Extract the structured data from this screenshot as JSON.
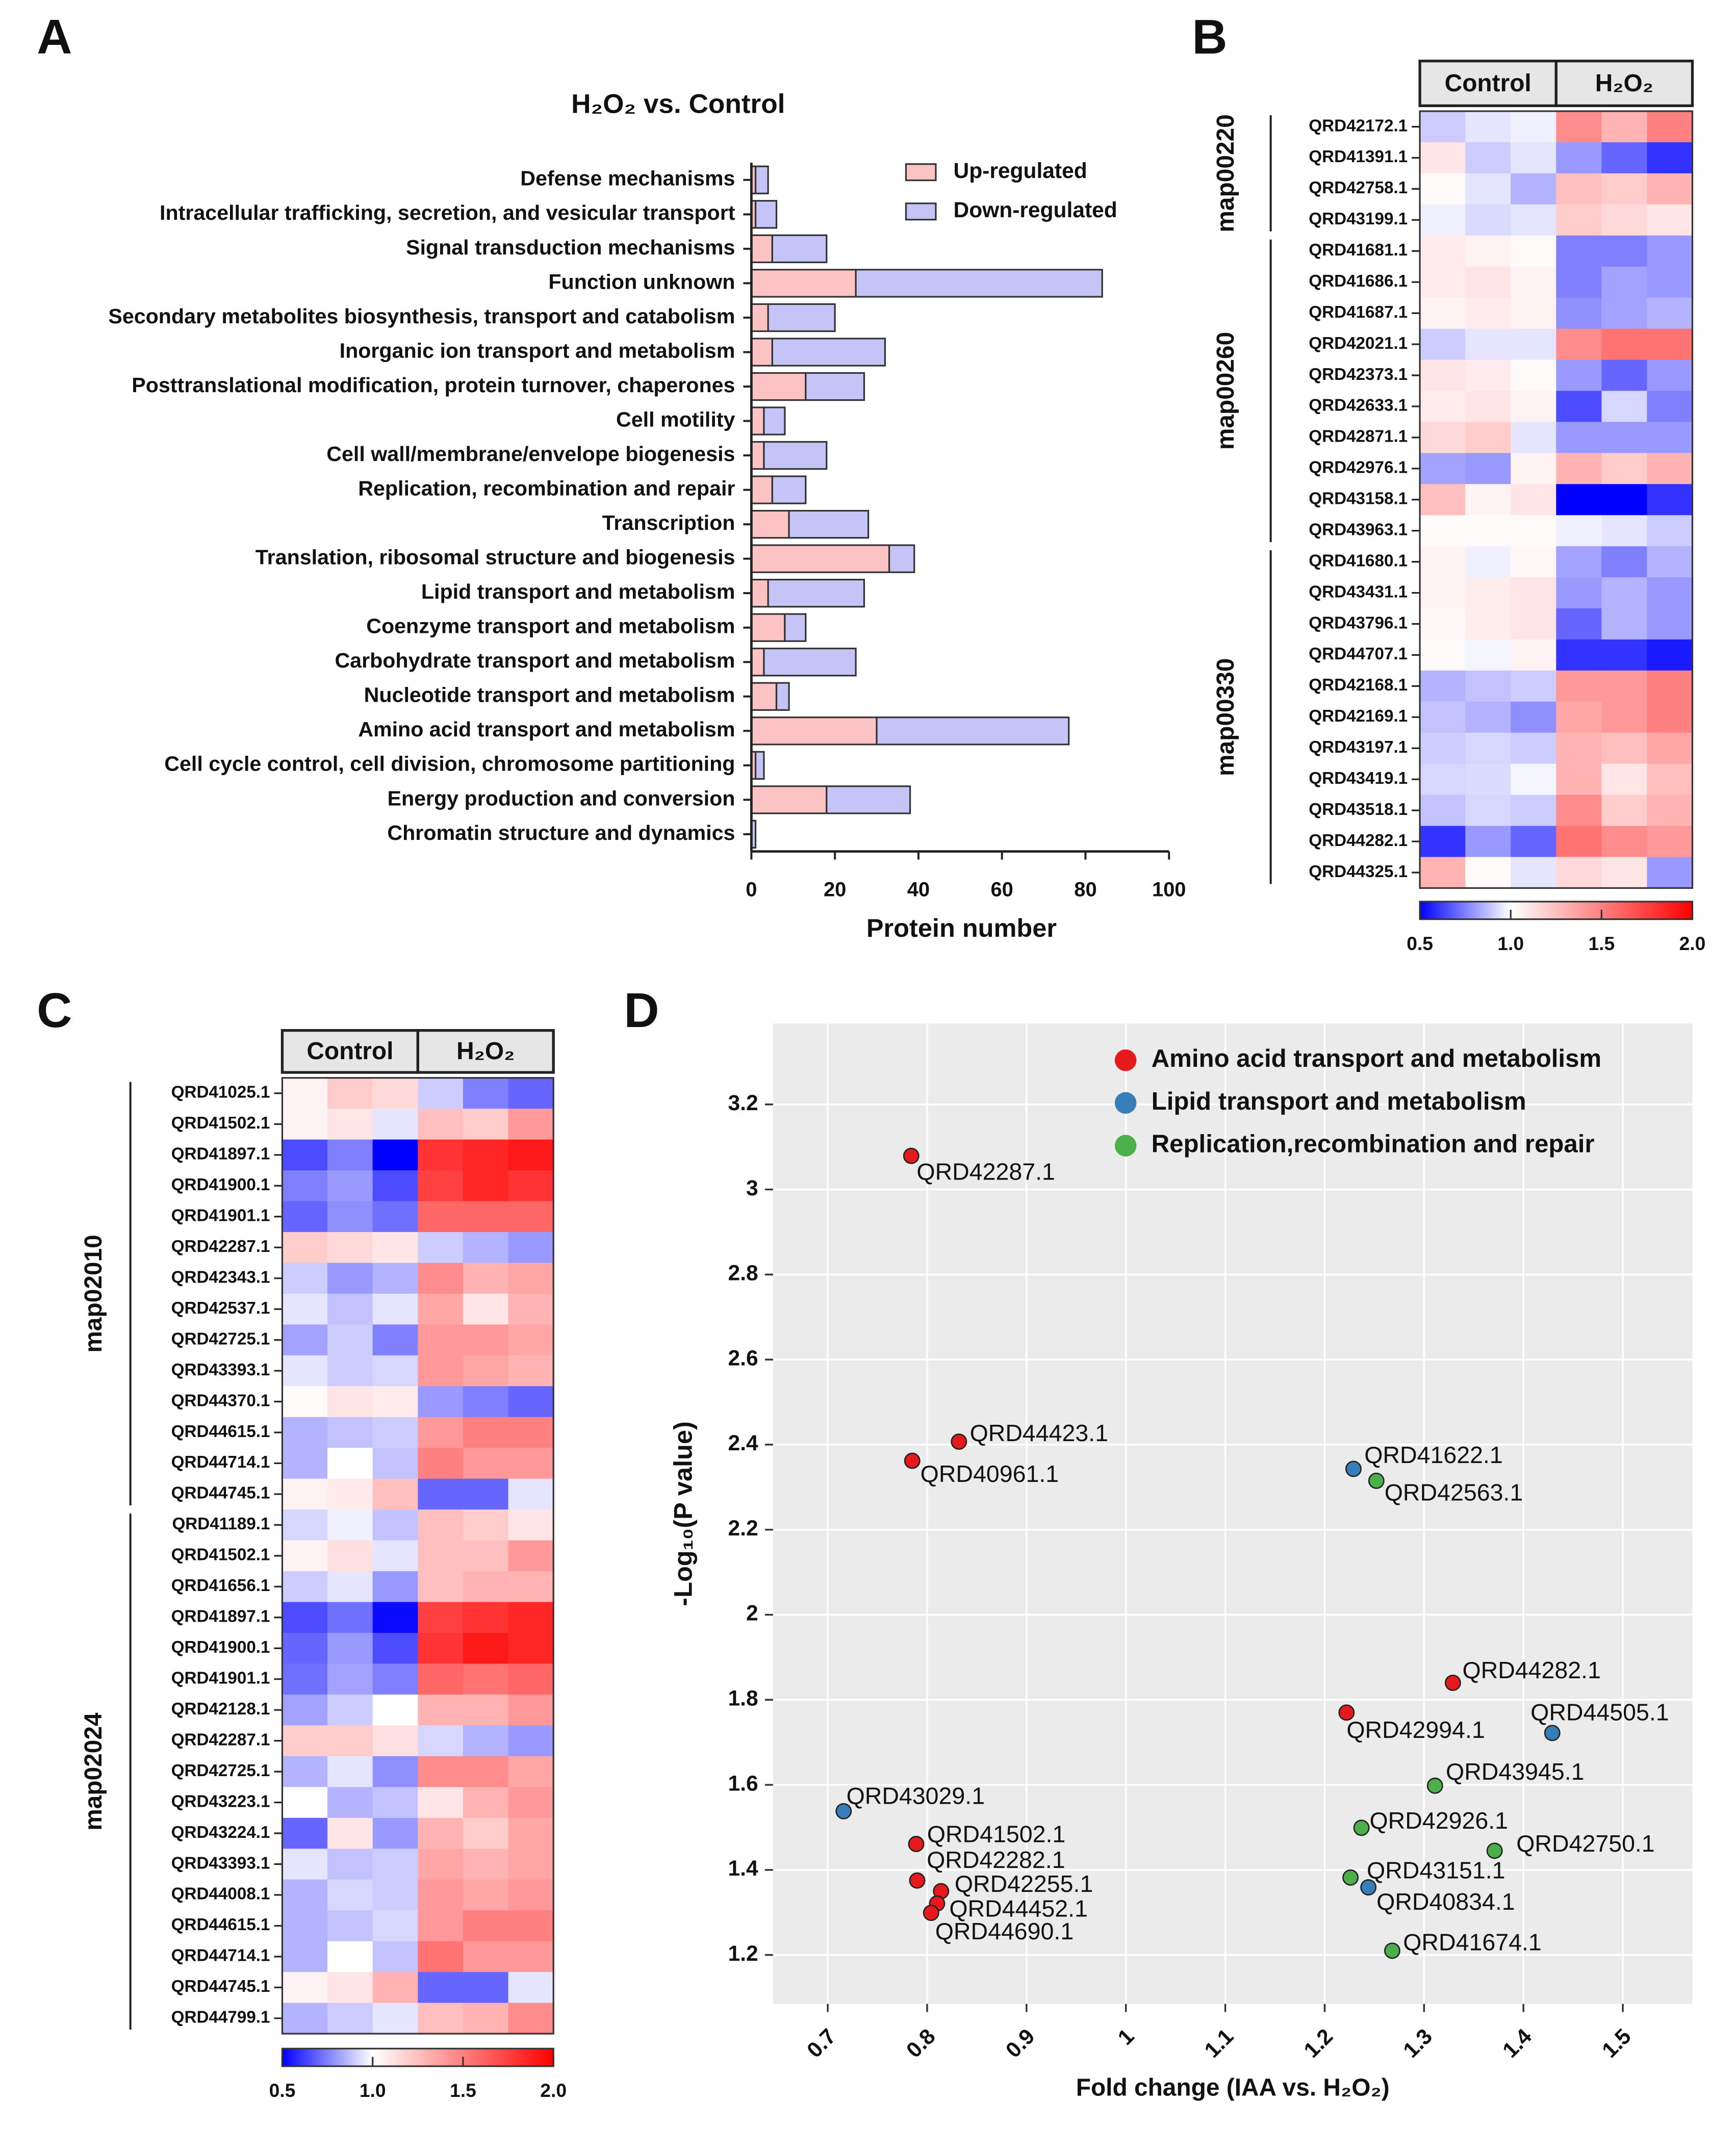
{
  "chart_data": [
    {
      "type": "bar",
      "panel": "A",
      "title": "H₂O₂ vs. Control",
      "x_label": "Protein number",
      "categories": [
        "Defense mechanisms",
        "Intracellular trafficking, secretion, and vesicular transport",
        "Signal transduction mechanisms",
        "Function unknown",
        "Secondary metabolites biosynthesis, transport and catabolism",
        "Inorganic ion transport and metabolism",
        "Posttranslational modification, protein turnover, chaperones",
        "Cell motility",
        "Cell wall/membrane/envelope biogenesis",
        "Replication, recombination and repair",
        "Transcription",
        "Translation, ribosomal structure and biogenesis",
        "Lipid transport and metabolism",
        "Coenzyme transport and metabolism",
        "Carbohydrate transport and metabolism",
        "Nucleotide transport and metabolism",
        "Amino acid transport and metabolism",
        "Cell cycle control, cell division, chromosome partitioning",
        "Energy production and conversion",
        "Chromatin structure and dynamics"
      ],
      "series": [
        {
          "name": "Up-regulated",
          "color": "#fbc3c3",
          "values": [
            1,
            1,
            5,
            25,
            4,
            5,
            13,
            3,
            3,
            5,
            9,
            33,
            4,
            8,
            3,
            6,
            30,
            1,
            18,
            0
          ]
        },
        {
          "name": "Down-regulated",
          "color": "#c4c4f6",
          "values": [
            3,
            5,
            13,
            59,
            16,
            27,
            14,
            5,
            15,
            8,
            19,
            6,
            23,
            5,
            22,
            3,
            46,
            2,
            20,
            1
          ]
        }
      ],
      "xlim": [
        0,
        100
      ],
      "xticks": [
        0,
        20,
        40,
        60,
        80,
        100
      ]
    },
    {
      "type": "heatmap",
      "panel": "B",
      "column_groups": [
        "Control",
        "H₂O₂"
      ],
      "colors": [
        "#0000ff",
        "#ffffff",
        "#ff0000"
      ],
      "zlim": [
        0.5,
        2
      ],
      "zmid": 1,
      "zticks": [
        0.5,
        {
          "value": 1,
          "label": "1.0"
        },
        {
          "value": 1.5,
          "label": "1.5"
        },
        {
          "value": 2,
          "label": "2.0"
        }
      ],
      "groups": [
        {
          "name": "map00220",
          "rows": [
            {
              "label": "QRD42172.1",
              "values": [
                0.9,
                0.95,
                0.97,
                1.45,
                1.3,
                1.5
              ]
            },
            {
              "label": "QRD41391.1",
              "values": [
                1.1,
                0.9,
                0.95,
                0.8,
                0.7,
                0.6
              ]
            },
            {
              "label": "QRD42758.1",
              "values": [
                1.02,
                0.95,
                0.85,
                1.25,
                1.2,
                1.3
              ]
            },
            {
              "label": "QRD43199.1",
              "values": [
                0.97,
                0.93,
                0.95,
                1.2,
                1.15,
                1.1
              ]
            }
          ]
        },
        {
          "name": "map00260",
          "rows": [
            {
              "label": "QRD41681.1",
              "values": [
                1.08,
                1.05,
                1.02,
                0.75,
                0.75,
                0.8
              ]
            },
            {
              "label": "QRD41686.1",
              "values": [
                1.08,
                1.1,
                1.05,
                0.75,
                0.82,
                0.8
              ]
            },
            {
              "label": "QRD41687.1",
              "values": [
                1.05,
                1.08,
                1.05,
                0.78,
                0.82,
                0.85
              ]
            },
            {
              "label": "QRD42021.1",
              "values": [
                0.9,
                0.95,
                0.95,
                1.45,
                1.55,
                1.55
              ]
            },
            {
              "label": "QRD42373.1",
              "values": [
                1.1,
                1.08,
                1.02,
                0.8,
                0.7,
                0.8
              ]
            },
            {
              "label": "QRD42633.1",
              "values": [
                1.08,
                1.1,
                1.05,
                0.65,
                0.92,
                0.75
              ]
            },
            {
              "label": "QRD42871.1",
              "values": [
                1.15,
                1.2,
                0.95,
                0.8,
                0.8,
                0.8
              ]
            },
            {
              "label": "QRD42976.1",
              "values": [
                0.82,
                0.8,
                1.05,
                1.3,
                1.2,
                1.3
              ]
            },
            {
              "label": "QRD43158.1",
              "values": [
                1.25,
                1.05,
                1.1,
                0.5,
                0.5,
                0.6
              ]
            },
            {
              "label": "QRD43963.1",
              "values": [
                1.02,
                1.02,
                1.02,
                0.97,
                0.95,
                0.9
              ]
            }
          ]
        },
        {
          "name": "map00330",
          "rows": [
            {
              "label": "QRD41680.1",
              "values": [
                1.05,
                0.97,
                1.03,
                0.82,
                0.75,
                0.85
              ]
            },
            {
              "label": "QRD43431.1",
              "values": [
                1.05,
                1.07,
                1.1,
                0.8,
                0.85,
                0.8
              ]
            },
            {
              "label": "QRD43796.1",
              "values": [
                1.03,
                1.07,
                1.1,
                0.7,
                0.85,
                0.8
              ]
            },
            {
              "label": "QRD44707.1",
              "values": [
                1.02,
                0.98,
                1.05,
                0.6,
                0.6,
                0.55
              ]
            },
            {
              "label": "QRD42168.1",
              "values": [
                0.85,
                0.88,
                0.9,
                1.4,
                1.4,
                1.5
              ]
            },
            {
              "label": "QRD42169.1",
              "values": [
                0.88,
                0.85,
                0.78,
                1.35,
                1.4,
                1.5
              ]
            },
            {
              "label": "QRD43197.1",
              "values": [
                0.9,
                0.92,
                0.9,
                1.3,
                1.25,
                1.35
              ]
            },
            {
              "label": "QRD43419.1",
              "values": [
                0.92,
                0.93,
                0.98,
                1.3,
                1.1,
                1.25
              ]
            },
            {
              "label": "QRD43518.1",
              "values": [
                0.88,
                0.92,
                0.9,
                1.45,
                1.2,
                1.3
              ]
            },
            {
              "label": "QRD44282.1",
              "values": [
                0.6,
                0.8,
                0.7,
                1.55,
                1.45,
                1.4
              ]
            },
            {
              "label": "QRD44325.1",
              "values": [
                1.3,
                1.02,
                0.95,
                1.15,
                1.1,
                0.8
              ]
            }
          ]
        }
      ]
    },
    {
      "type": "heatmap",
      "panel": "C",
      "column_groups": [
        "Control",
        "H₂O₂"
      ],
      "colors": [
        "#0000ff",
        "#ffffff",
        "#ff0000"
      ],
      "zlim": [
        0.5,
        2
      ],
      "zmid": 1,
      "zticks": [
        0.5,
        {
          "value": 1,
          "label": "1.0"
        },
        {
          "value": 1.5,
          "label": "1.5"
        },
        {
          "value": 2,
          "label": "2.0"
        }
      ],
      "groups": [
        {
          "name": "map02010",
          "rows": [
            {
              "label": "QRD41025.1",
              "values": [
                1.05,
                1.2,
                1.15,
                0.9,
                0.75,
                0.7
              ]
            },
            {
              "label": "QRD41502.1",
              "values": [
                1.05,
                1.1,
                0.95,
                1.25,
                1.2,
                1.4
              ]
            },
            {
              "label": "QRD41897.1",
              "values": [
                0.65,
                0.75,
                0.5,
                1.8,
                1.85,
                1.9
              ]
            },
            {
              "label": "QRD41900.1",
              "values": [
                0.75,
                0.8,
                0.65,
                1.75,
                1.85,
                1.8
              ]
            },
            {
              "label": "QRD41901.1",
              "values": [
                0.7,
                0.78,
                0.72,
                1.6,
                1.6,
                1.6
              ]
            },
            {
              "label": "QRD42287.1",
              "values": [
                1.2,
                1.15,
                1.1,
                0.9,
                0.85,
                0.8
              ]
            },
            {
              "label": "QRD42343.1",
              "values": [
                0.9,
                0.8,
                0.85,
                1.45,
                1.3,
                1.35
              ]
            },
            {
              "label": "QRD42537.1",
              "values": [
                0.95,
                0.88,
                0.95,
                1.35,
                1.1,
                1.3
              ]
            },
            {
              "label": "QRD42725.1",
              "values": [
                0.82,
                0.9,
                0.75,
                1.4,
                1.4,
                1.35
              ]
            },
            {
              "label": "QRD43393.1",
              "values": [
                0.95,
                0.9,
                0.92,
                1.4,
                1.35,
                1.3
              ]
            },
            {
              "label": "QRD44370.1",
              "values": [
                1.02,
                1.1,
                1.08,
                0.8,
                0.75,
                0.7
              ]
            },
            {
              "label": "QRD44615.1",
              "values": [
                0.85,
                0.88,
                0.9,
                1.4,
                1.5,
                1.5
              ]
            },
            {
              "label": "QRD44714.1",
              "values": [
                0.85,
                1.0,
                0.88,
                1.5,
                1.4,
                1.4
              ]
            },
            {
              "label": "QRD44745.1",
              "values": [
                1.05,
                1.08,
                1.25,
                0.7,
                0.7,
                0.95
              ]
            }
          ]
        },
        {
          "name": "map02024",
          "rows": [
            {
              "label": "QRD41189.1",
              "values": [
                0.92,
                0.97,
                0.88,
                1.25,
                1.2,
                1.1
              ]
            },
            {
              "label": "QRD41502.1",
              "values": [
                1.05,
                1.12,
                0.95,
                1.25,
                1.25,
                1.4
              ]
            },
            {
              "label": "QRD41656.1",
              "values": [
                0.9,
                0.95,
                0.8,
                1.25,
                1.3,
                1.3
              ]
            },
            {
              "label": "QRD41897.1",
              "values": [
                0.65,
                0.72,
                0.52,
                1.75,
                1.8,
                1.85
              ]
            },
            {
              "label": "QRD41900.1",
              "values": [
                0.7,
                0.8,
                0.65,
                1.8,
                1.9,
                1.85
              ]
            },
            {
              "label": "QRD41901.1",
              "values": [
                0.72,
                0.82,
                0.75,
                1.6,
                1.55,
                1.6
              ]
            },
            {
              "label": "QRD42128.1",
              "values": [
                0.82,
                0.9,
                1.0,
                1.3,
                1.3,
                1.4
              ]
            },
            {
              "label": "QRD42287.1",
              "values": [
                1.2,
                1.2,
                1.12,
                0.92,
                0.85,
                0.8
              ]
            },
            {
              "label": "QRD42725.1",
              "values": [
                0.85,
                0.95,
                0.78,
                1.45,
                1.45,
                1.35
              ]
            },
            {
              "label": "QRD43223.1",
              "values": [
                1.0,
                0.85,
                0.88,
                1.1,
                1.3,
                1.4
              ]
            },
            {
              "label": "QRD43224.1",
              "values": [
                0.7,
                1.1,
                0.8,
                1.3,
                1.2,
                1.35
              ]
            },
            {
              "label": "QRD43393.1",
              "values": [
                0.95,
                0.88,
                0.9,
                1.35,
                1.3,
                1.35
              ]
            },
            {
              "label": "QRD44008.1",
              "values": [
                0.85,
                0.92,
                0.9,
                1.4,
                1.35,
                1.4
              ]
            },
            {
              "label": "QRD44615.1",
              "values": [
                0.85,
                0.88,
                0.92,
                1.4,
                1.5,
                1.5
              ]
            },
            {
              "label": "QRD44714.1",
              "values": [
                0.85,
                1.0,
                0.88,
                1.55,
                1.4,
                1.4
              ]
            },
            {
              "label": "QRD44745.1",
              "values": [
                1.05,
                1.1,
                1.3,
                0.7,
                0.7,
                0.95
              ]
            },
            {
              "label": "QRD44799.1",
              "values": [
                0.85,
                0.9,
                0.95,
                1.25,
                1.3,
                1.45
              ]
            }
          ]
        }
      ]
    },
    {
      "type": "scatter",
      "panel": "D",
      "x_label": "Fold change (IAA vs. H₂O₂)",
      "y_label": "-Log₁₀(P value)",
      "xlim": [
        0.645,
        1.57
      ],
      "ylim": [
        1.085,
        3.39
      ],
      "xticks": [
        0.7,
        0.8,
        0.9,
        1,
        1.1,
        1.2,
        1.3,
        1.4,
        1.5
      ],
      "yticks": [
        1.2,
        1.4,
        1.6,
        1.8,
        2,
        2.2,
        2.4,
        2.6,
        2.8,
        3,
        3.2
      ],
      "grid": true,
      "series": [
        {
          "name": "Amino acid transport and metabolism",
          "color": "#e41a1c",
          "labels": [
            "QRD42287.1",
            "QRD44423.1",
            "QRD40961.1",
            "QRD44282.1",
            "QRD42994.1",
            "QRD41502.1",
            "QRD42282.1",
            "QRD42255.1",
            "QRD44452.1",
            "QRD44690.1"
          ],
          "x": [
            0.784,
            0.832,
            0.785,
            1.329,
            1.222,
            0.789,
            0.79,
            0.814,
            0.81,
            0.804
          ],
          "y": [
            3.079,
            2.407,
            2.362,
            1.84,
            1.77,
            1.461,
            1.375,
            1.35,
            1.321,
            1.299
          ]
        },
        {
          "name": "Lipid transport and metabolism",
          "color": "#377eb8",
          "labels": [
            "QRD41622.1",
            "QRD44505.1",
            "QRD43029.1",
            "QRD40834.1"
          ],
          "x": [
            1.229,
            1.429,
            0.716,
            1.244
          ],
          "y": [
            2.343,
            1.722,
            1.538,
            1.359
          ]
        },
        {
          "name": "Replication,recombination and repair",
          "color": "#4daf4a",
          "labels": [
            "QRD42563.1",
            "QRD43945.1",
            "QRD42926.1",
            "QRD42750.1",
            "QRD43151.1",
            "QRD41674.1"
          ],
          "x": [
            1.252,
            1.311,
            1.237,
            1.371,
            1.226,
            1.268
          ],
          "y": [
            2.315,
            1.598,
            1.499,
            1.445,
            1.382,
            1.21
          ]
        }
      ]
    }
  ]
}
